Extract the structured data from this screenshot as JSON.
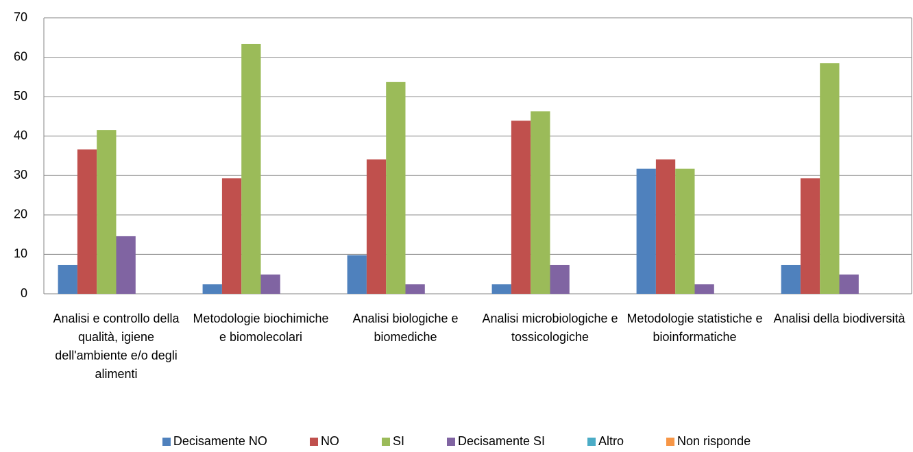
{
  "chart_data": {
    "type": "bar",
    "categories": [
      "Analisi e controllo della qualità, igiene dell'ambiente e/o degli alimenti",
      "Metodologie biochimiche e biomolecolari",
      "Analisi biologiche e biomediche",
      "Analisi microbiologiche e tossicologiche",
      "Metodologie statistiche e bioinformatiche",
      "Analisi della biodiversità"
    ],
    "series": [
      {
        "name": "Decisamente NO",
        "color": "#4f81bd",
        "values": [
          7.3,
          2.4,
          9.8,
          2.4,
          31.7,
          7.3
        ]
      },
      {
        "name": "NO",
        "color": "#c0504d",
        "values": [
          36.6,
          29.3,
          34.1,
          43.9,
          34.1,
          29.3
        ]
      },
      {
        "name": "SI",
        "color": "#9bbb59",
        "values": [
          41.5,
          63.4,
          53.7,
          46.3,
          31.7,
          58.5
        ]
      },
      {
        "name": "Decisamente SI",
        "color": "#8064a2",
        "values": [
          14.6,
          4.9,
          2.4,
          7.3,
          2.4,
          4.9
        ]
      },
      {
        "name": "Altro",
        "color": "#4bacc6",
        "values": [
          0,
          0,
          0,
          0,
          0,
          0
        ]
      },
      {
        "name": "Non risponde",
        "color": "#f79646",
        "values": [
          0,
          0,
          0,
          0,
          0,
          0
        ]
      }
    ],
    "ylim": [
      0,
      70
    ],
    "yticks": [
      0,
      10,
      20,
      30,
      40,
      50,
      60,
      70
    ],
    "grid": true,
    "legend": "bottom"
  }
}
